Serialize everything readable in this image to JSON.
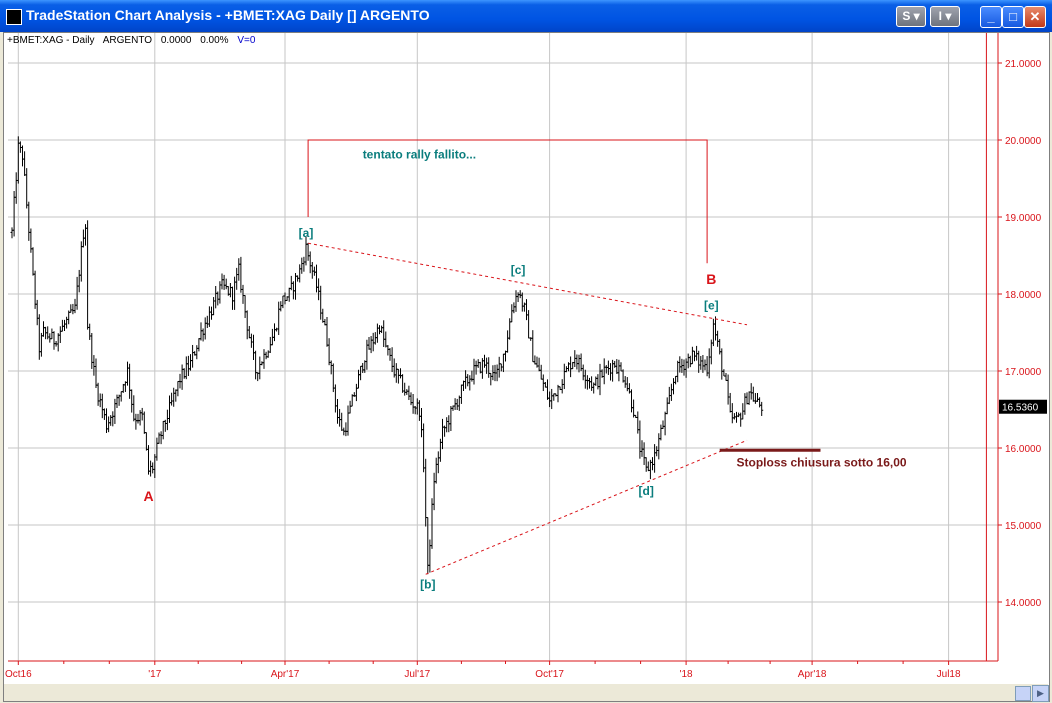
{
  "window": {
    "title": "TradeStation Chart Analysis - +BMET:XAG Daily [] ARGENTO",
    "buttons": {
      "s_label": "S",
      "i_label": "I",
      "minimize": "_",
      "maximize": "□",
      "close": "✕"
    }
  },
  "legend": {
    "symbol": "+BMET:XAG - Daily",
    "name": "ARGENTO",
    "value": "0.0000",
    "change": "0.00%",
    "volume": "V=0"
  },
  "chart_data": {
    "type": "ohlc",
    "instrument": "+BMET:XAG",
    "interval": "Daily",
    "ylim": [
      13.2,
      21.2
    ],
    "y_ticks": [
      "21.0000",
      "20.0000",
      "19.0000",
      "18.0000",
      "17.0000",
      "16.0000",
      "15.0000",
      "14.0000"
    ],
    "x_ticks": [
      {
        "label": "Oct16",
        "index": 3
      },
      {
        "label": "'17",
        "index": 68
      },
      {
        "label": "Apr'17",
        "index": 130
      },
      {
        "label": "Jul'17",
        "index": 193
      },
      {
        "label": "Oct'17",
        "index": 256
      },
      {
        "label": "'18",
        "index": 321
      },
      {
        "label": "Apr'18",
        "index": 381
      },
      {
        "label": "Jul18",
        "index": 446
      }
    ],
    "last_price": "16.5360",
    "last_index": 357,
    "price_path": [
      [
        0,
        18.8
      ],
      [
        3,
        19.9
      ],
      [
        5,
        19.8
      ],
      [
        10,
        18.2
      ],
      [
        13,
        17.3
      ],
      [
        15,
        17.5
      ],
      [
        20,
        17.4
      ],
      [
        25,
        17.6
      ],
      [
        30,
        17.8
      ],
      [
        34,
        18.8
      ],
      [
        35,
        18.9
      ],
      [
        36,
        17.6
      ],
      [
        40,
        16.8
      ],
      [
        45,
        16.3
      ],
      [
        50,
        16.6
      ],
      [
        55,
        17.0
      ],
      [
        58,
        16.4
      ],
      [
        62,
        16.4
      ],
      [
        65,
        15.7
      ],
      [
        67,
        15.75
      ],
      [
        70,
        16.1
      ],
      [
        75,
        16.5
      ],
      [
        80,
        16.9
      ],
      [
        85,
        17.1
      ],
      [
        90,
        17.5
      ],
      [
        95,
        17.8
      ],
      [
        100,
        18.1
      ],
      [
        105,
        18.0
      ],
      [
        108,
        18.3
      ],
      [
        112,
        17.6
      ],
      [
        116,
        17.0
      ],
      [
        120,
        17.2
      ],
      [
        125,
        17.5
      ],
      [
        128,
        17.9
      ],
      [
        132,
        18.0
      ],
      [
        137,
        18.3
      ],
      [
        140,
        18.6
      ],
      [
        145,
        18.1
      ],
      [
        150,
        17.4
      ],
      [
        153,
        16.8
      ],
      [
        155,
        16.4
      ],
      [
        158,
        16.2
      ],
      [
        162,
        16.6
      ],
      [
        165,
        16.9
      ],
      [
        168,
        17.2
      ],
      [
        172,
        17.4
      ],
      [
        175,
        17.6
      ],
      [
        178,
        17.3
      ],
      [
        182,
        17.0
      ],
      [
        186,
        16.8
      ],
      [
        190,
        16.6
      ],
      [
        194,
        16.5
      ],
      [
        196,
        15.8
      ],
      [
        198,
        14.4
      ],
      [
        201,
        15.6
      ],
      [
        205,
        16.2
      ],
      [
        210,
        16.5
      ],
      [
        215,
        16.8
      ],
      [
        220,
        17.0
      ],
      [
        225,
        17.1
      ],
      [
        230,
        16.9
      ],
      [
        235,
        17.3
      ],
      [
        238,
        17.8
      ],
      [
        241,
        18.05
      ],
      [
        244,
        17.8
      ],
      [
        248,
        17.2
      ],
      [
        252,
        16.9
      ],
      [
        256,
        16.6
      ],
      [
        260,
        16.8
      ],
      [
        264,
        17.0
      ],
      [
        268,
        17.2
      ],
      [
        272,
        17.0
      ],
      [
        277,
        16.8
      ],
      [
        282,
        17.0
      ],
      [
        287,
        17.1
      ],
      [
        292,
        16.9
      ],
      [
        296,
        16.5
      ],
      [
        299,
        16.0
      ],
      [
        302,
        15.7
      ],
      [
        306,
        15.9
      ],
      [
        309,
        16.2
      ],
      [
        312,
        16.5
      ],
      [
        316,
        17.0
      ],
      [
        320,
        17.1
      ],
      [
        324,
        17.2
      ],
      [
        328,
        17.1
      ],
      [
        331,
        17.05
      ],
      [
        334,
        17.6
      ],
      [
        337,
        17.2
      ],
      [
        340,
        16.8
      ],
      [
        342,
        16.4
      ],
      [
        345,
        16.35
      ],
      [
        348,
        16.5
      ],
      [
        351,
        16.75
      ],
      [
        354,
        16.6
      ],
      [
        357,
        16.54
      ]
    ],
    "wave_labels": [
      {
        "text": "A",
        "color": "#d9141a",
        "x_index": 65,
        "price": 15.52,
        "pos": "below"
      },
      {
        "text": "[a]",
        "color": "#0a7d7d",
        "x_index": 140,
        "price": 18.66,
        "pos": "above"
      },
      {
        "text": "[b]",
        "color": "#0a7d7d",
        "x_index": 198,
        "price": 14.38,
        "pos": "below"
      },
      {
        "text": "[c]",
        "color": "#0a7d7d",
        "x_index": 241,
        "price": 18.18,
        "pos": "above"
      },
      {
        "text": "[d]",
        "color": "#0a7d7d",
        "x_index": 302,
        "price": 15.6,
        "pos": "below"
      },
      {
        "text": "B",
        "color": "#d9141a",
        "x_index": 333,
        "price": 18.05,
        "pos": "above"
      },
      {
        "text": "[e]",
        "color": "#0a7d7d",
        "x_index": 333,
        "price": 17.72,
        "pos": "above"
      }
    ],
    "trendlines": [
      {
        "style": "dashed",
        "color": "#d9141a",
        "from": {
          "x_index": 141,
          "price": 18.66
        },
        "to": {
          "x_index": 350,
          "price": 17.6
        }
      },
      {
        "style": "dashed",
        "color": "#d9141a",
        "from": {
          "x_index": 197,
          "price": 14.36
        },
        "to": {
          "x_index": 350,
          "price": 16.1
        }
      }
    ],
    "bracket": {
      "color": "#d9141a",
      "x1_index": 141,
      "x2_index": 331,
      "top_price": 20.0,
      "left_bottom_price": 19.0,
      "right_bottom_price": 18.4
    },
    "annotations": [
      {
        "text": "tentato rally fallito...",
        "color": "#0a7d7d",
        "x_index": 167,
        "price": 19.76,
        "weight": "bold"
      },
      {
        "text": "Stoploss  chiusura sotto 16,00",
        "color": "#7a1a1a",
        "x_index": 345,
        "price": 15.76,
        "weight": "bold"
      }
    ],
    "stoploss": {
      "price": 15.97,
      "x1_index": 337,
      "x2_index": 385,
      "color": "#7a1a1a"
    },
    "vertical_marker": {
      "x_index": 464,
      "color": "#d9141a"
    },
    "grid": true,
    "colors": {
      "bars": "#000000",
      "grid": "#c6c6c6",
      "axis": "#d9141a",
      "label_teal": "#0a7d7d",
      "label_red": "#d9141a"
    }
  }
}
